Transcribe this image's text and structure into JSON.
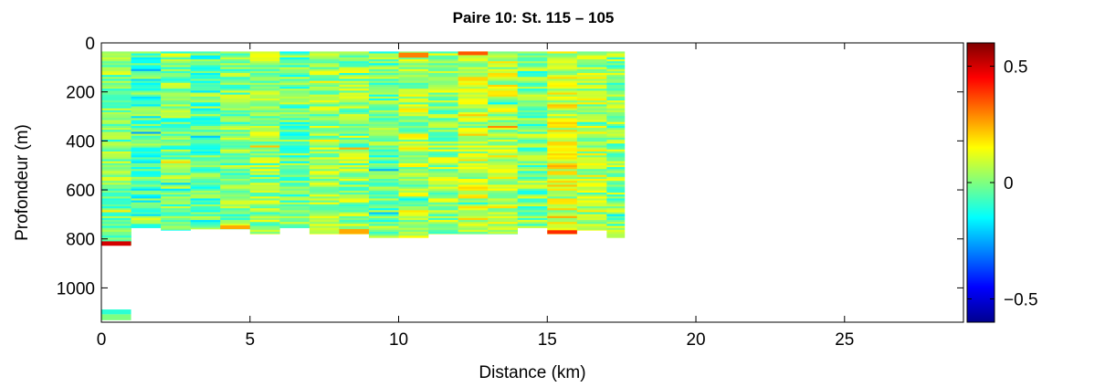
{
  "chart_data": {
    "type": "heatmap",
    "title": "Paire 10: St. 115 – 105",
    "xlabel": "Distance (km)",
    "ylabel": "Profondeur (m)",
    "xlim": [
      0,
      29
    ],
    "ylim": [
      1140,
      0
    ],
    "x_ticks": [
      0,
      5,
      10,
      15,
      20,
      25
    ],
    "y_ticks": [
      0,
      200,
      400,
      600,
      800,
      1000
    ],
    "colorbar": {
      "clim": [
        -0.6,
        0.6
      ],
      "ticks": [
        {
          "value": 0.5,
          "label": "0.5"
        },
        {
          "value": 0,
          "label": "0"
        },
        {
          "value": -0.5,
          "label": "−0.5"
        }
      ],
      "colormap": "jet"
    },
    "columns": [
      {
        "x0": 0.0,
        "x1": 1.0,
        "top": 35,
        "bottom": 825,
        "seed": 3,
        "bias": 0.0
      },
      {
        "x0": 1.0,
        "x1": 2.0,
        "top": 35,
        "bottom": 755,
        "seed": 7,
        "bias": -0.06
      },
      {
        "x0": 2.0,
        "x1": 3.0,
        "top": 35,
        "bottom": 765,
        "seed": 11,
        "bias": -0.02
      },
      {
        "x0": 3.0,
        "x1": 4.0,
        "top": 35,
        "bottom": 760,
        "seed": 13,
        "bias": -0.05
      },
      {
        "x0": 4.0,
        "x1": 5.0,
        "top": 35,
        "bottom": 760,
        "seed": 17,
        "bias": 0.01
      },
      {
        "x0": 5.0,
        "x1": 6.0,
        "top": 35,
        "bottom": 780,
        "seed": 19,
        "bias": 0.03
      },
      {
        "x0": 6.0,
        "x1": 7.0,
        "top": 35,
        "bottom": 755,
        "seed": 23,
        "bias": -0.03
      },
      {
        "x0": 7.0,
        "x1": 8.0,
        "top": 35,
        "bottom": 780,
        "seed": 29,
        "bias": 0.04
      },
      {
        "x0": 8.0,
        "x1": 9.0,
        "top": 35,
        "bottom": 780,
        "seed": 31,
        "bias": 0.02
      },
      {
        "x0": 9.0,
        "x1": 10.0,
        "top": 35,
        "bottom": 795,
        "seed": 37,
        "bias": -0.02
      },
      {
        "x0": 10.0,
        "x1": 11.0,
        "top": 35,
        "bottom": 795,
        "seed": 41,
        "bias": 0.05
      },
      {
        "x0": 11.0,
        "x1": 12.0,
        "top": 35,
        "bottom": 780,
        "seed": 43,
        "bias": 0.03
      },
      {
        "x0": 12.0,
        "x1": 13.0,
        "top": 35,
        "bottom": 780,
        "seed": 47,
        "bias": 0.08
      },
      {
        "x0": 13.0,
        "x1": 14.0,
        "top": 35,
        "bottom": 780,
        "seed": 53,
        "bias": 0.06
      },
      {
        "x0": 14.0,
        "x1": 15.0,
        "top": 35,
        "bottom": 755,
        "seed": 59,
        "bias": -0.01
      },
      {
        "x0": 15.0,
        "x1": 16.0,
        "top": 35,
        "bottom": 780,
        "seed": 61,
        "bias": 0.09
      },
      {
        "x0": 16.0,
        "x1": 17.0,
        "top": 35,
        "bottom": 765,
        "seed": 67,
        "bias": 0.05
      },
      {
        "x0": 17.0,
        "x1": 17.6,
        "top": 35,
        "bottom": 795,
        "seed": 71,
        "bias": 0.01
      }
    ],
    "special_cells": [
      {
        "x0": 0.0,
        "x1": 1.0,
        "y0": 810,
        "y1": 828,
        "value": 0.5
      },
      {
        "x0": 0.0,
        "x1": 1.0,
        "y0": 1088,
        "y1": 1108,
        "value": -0.1
      },
      {
        "x0": 0.0,
        "x1": 1.0,
        "y0": 1108,
        "y1": 1132,
        "value": 0.0
      },
      {
        "x0": 15.0,
        "x1": 16.0,
        "y0": 765,
        "y1": 780,
        "value": 0.4
      },
      {
        "x0": 8.0,
        "x1": 9.0,
        "y0": 760,
        "y1": 780,
        "value": 0.25
      },
      {
        "x0": 4.0,
        "x1": 5.0,
        "y0": 745,
        "y1": 760,
        "value": 0.25
      },
      {
        "x0": 12.0,
        "x1": 13.0,
        "y0": 35,
        "y1": 50,
        "value": 0.35
      },
      {
        "x0": 10.0,
        "x1": 11.0,
        "y0": 40,
        "y1": 60,
        "value": 0.3
      }
    ]
  }
}
